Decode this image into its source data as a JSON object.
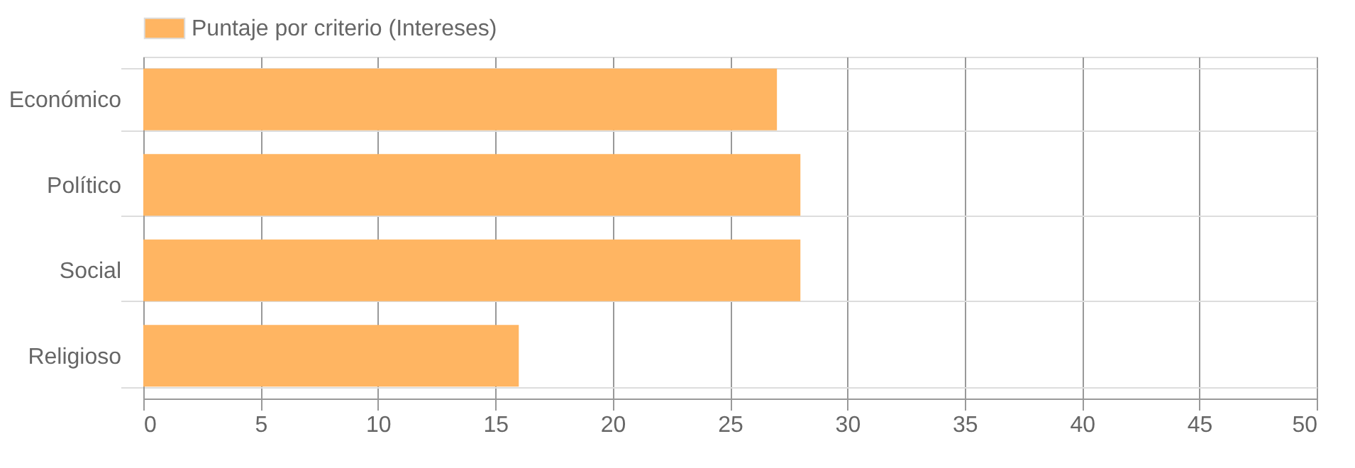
{
  "chart_data": {
    "type": "bar",
    "orientation": "horizontal",
    "categories": [
      "Económico",
      "Político",
      "Social",
      "Religioso"
    ],
    "series": [
      {
        "name": "Puntaje por criterio (Intereses)",
        "color": "#ffb562",
        "values": [
          27,
          28,
          28,
          16
        ]
      }
    ],
    "xlim": [
      0,
      50
    ],
    "xticks": [
      0,
      5,
      10,
      15,
      20,
      25,
      30,
      35,
      40,
      45,
      50
    ],
    "grid": true,
    "legend": "top"
  }
}
